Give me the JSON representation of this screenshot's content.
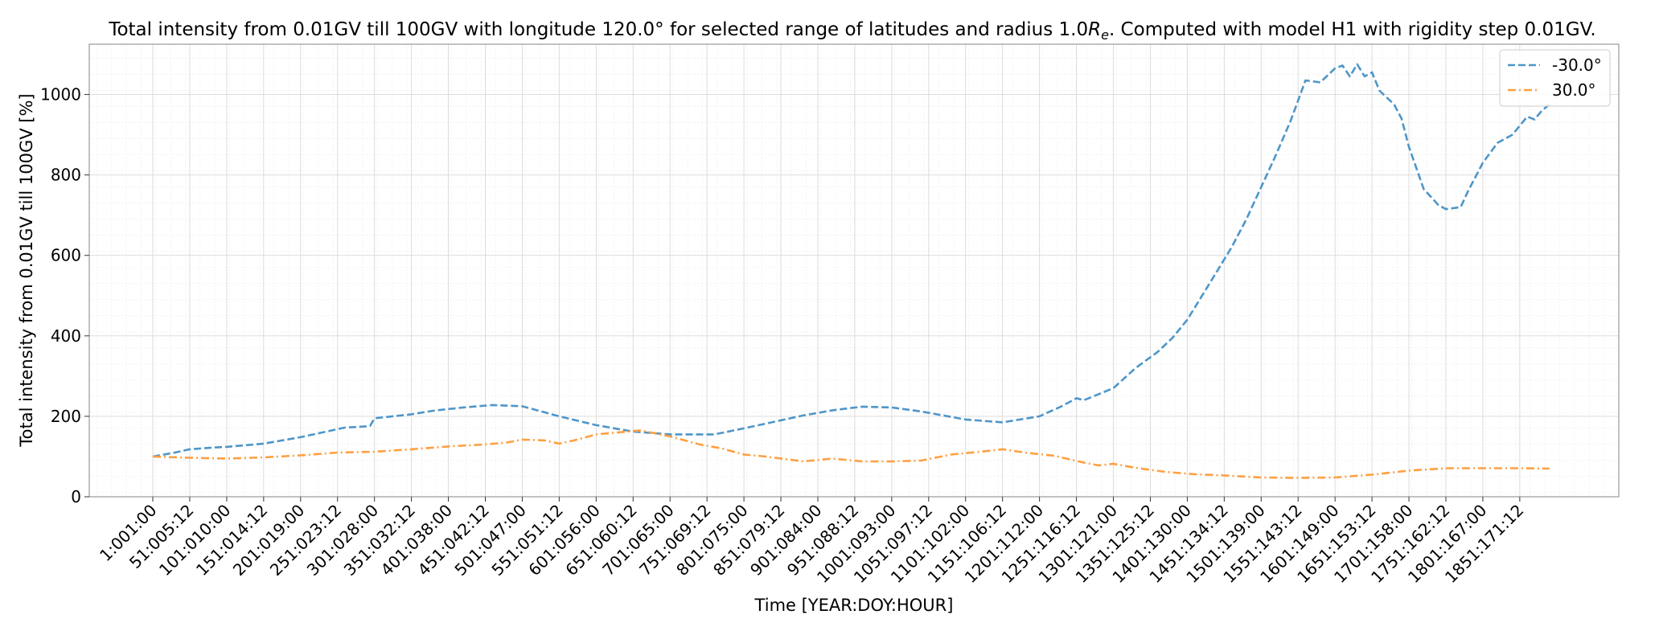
{
  "chart_data": {
    "type": "line",
    "title_main": "Total intensity from 0.01GV till 100GV with longitude 120.0° for selected range of latitudes and radius 1.0",
    "title_var": "R",
    "title_sub": "e",
    "title_tail": ". Computed with model H1 with rigidity step 0.01GV.",
    "xlabel": "Time [YEAR:DOY:HOUR]",
    "ylabel": "Total intensity from 0.01GV till 100GV [%]",
    "xlim": [
      -85,
      1985
    ],
    "ylim": [
      0,
      1125
    ],
    "x_ticks": [
      {
        "x": 1,
        "label": "1:001:00"
      },
      {
        "x": 51,
        "label": "51:005:12"
      },
      {
        "x": 101,
        "label": "101:010:00"
      },
      {
        "x": 151,
        "label": "151:014:12"
      },
      {
        "x": 201,
        "label": "201:019:00"
      },
      {
        "x": 251,
        "label": "251:023:12"
      },
      {
        "x": 301,
        "label": "301:028:00"
      },
      {
        "x": 351,
        "label": "351:032:12"
      },
      {
        "x": 401,
        "label": "401:038:00"
      },
      {
        "x": 451,
        "label": "451:042:12"
      },
      {
        "x": 501,
        "label": "501:047:00"
      },
      {
        "x": 551,
        "label": "551:051:12"
      },
      {
        "x": 601,
        "label": "601:056:00"
      },
      {
        "x": 651,
        "label": "651:060:12"
      },
      {
        "x": 701,
        "label": "701:065:00"
      },
      {
        "x": 751,
        "label": "751:069:12"
      },
      {
        "x": 801,
        "label": "801:075:00"
      },
      {
        "x": 851,
        "label": "851:079:12"
      },
      {
        "x": 901,
        "label": "901:084:00"
      },
      {
        "x": 951,
        "label": "951:088:12"
      },
      {
        "x": 1001,
        "label": "1001:093:00"
      },
      {
        "x": 1051,
        "label": "1051:097:12"
      },
      {
        "x": 1101,
        "label": "1101:102:00"
      },
      {
        "x": 1151,
        "label": "1151:106:12"
      },
      {
        "x": 1201,
        "label": "1201:112:00"
      },
      {
        "x": 1251,
        "label": "1251:116:12"
      },
      {
        "x": 1301,
        "label": "1301:121:00"
      },
      {
        "x": 1351,
        "label": "1351:125:12"
      },
      {
        "x": 1401,
        "label": "1401:130:00"
      },
      {
        "x": 1451,
        "label": "1451:134:12"
      },
      {
        "x": 1501,
        "label": "1501:139:00"
      },
      {
        "x": 1551,
        "label": "1551:143:12"
      },
      {
        "x": 1601,
        "label": "1601:149:00"
      },
      {
        "x": 1651,
        "label": "1651:153:12"
      },
      {
        "x": 1701,
        "label": "1701:158:00"
      },
      {
        "x": 1751,
        "label": "1751:162:12"
      },
      {
        "x": 1801,
        "label": "1801:167:00"
      },
      {
        "x": 1851,
        "label": "1851:171:12"
      }
    ],
    "y_ticks": [
      0,
      200,
      400,
      600,
      800,
      1000
    ],
    "grid": true,
    "legend_position": "top-right",
    "series": [
      {
        "name": "-30.0°",
        "color": "#4e96c8",
        "dash": "dashed",
        "points": [
          [
            1,
            100
          ],
          [
            31,
            110
          ],
          [
            51,
            118
          ],
          [
            81,
            122
          ],
          [
            101,
            124
          ],
          [
            151,
            132
          ],
          [
            201,
            148
          ],
          [
            231,
            160
          ],
          [
            261,
            172
          ],
          [
            291,
            175
          ],
          [
            295,
            176
          ],
          [
            301,
            195
          ],
          [
            351,
            205
          ],
          [
            381,
            214
          ],
          [
            421,
            222
          ],
          [
            461,
            228
          ],
          [
            501,
            225
          ],
          [
            551,
            200
          ],
          [
            601,
            178
          ],
          [
            651,
            162
          ],
          [
            701,
            155
          ],
          [
            761,
            155
          ],
          [
            801,
            170
          ],
          [
            851,
            190
          ],
          [
            881,
            202
          ],
          [
            921,
            215
          ],
          [
            961,
            224
          ],
          [
            1001,
            222
          ],
          [
            1041,
            212
          ],
          [
            1101,
            192
          ],
          [
            1151,
            185
          ],
          [
            1201,
            200
          ],
          [
            1231,
            225
          ],
          [
            1251,
            245
          ],
          [
            1261,
            240
          ],
          [
            1281,
            255
          ],
          [
            1301,
            270
          ],
          [
            1331,
            320
          ],
          [
            1361,
            360
          ],
          [
            1381,
            395
          ],
          [
            1401,
            440
          ],
          [
            1421,
            500
          ],
          [
            1441,
            560
          ],
          [
            1461,
            620
          ],
          [
            1481,
            690
          ],
          [
            1501,
            770
          ],
          [
            1521,
            850
          ],
          [
            1541,
            935
          ],
          [
            1551,
            985
          ],
          [
            1561,
            1035
          ],
          [
            1581,
            1030
          ],
          [
            1601,
            1065
          ],
          [
            1611,
            1072
          ],
          [
            1621,
            1045
          ],
          [
            1631,
            1075
          ],
          [
            1641,
            1045
          ],
          [
            1651,
            1055
          ],
          [
            1661,
            1010
          ],
          [
            1681,
            975
          ],
          [
            1691,
            940
          ],
          [
            1701,
            870
          ],
          [
            1721,
            765
          ],
          [
            1741,
            725
          ],
          [
            1751,
            715
          ],
          [
            1771,
            720
          ],
          [
            1781,
            760
          ],
          [
            1801,
            830
          ],
          [
            1821,
            880
          ],
          [
            1841,
            900
          ],
          [
            1861,
            945
          ],
          [
            1871,
            938
          ],
          [
            1881,
            960
          ],
          [
            1891,
            975
          ]
        ]
      },
      {
        "name": "30.0°",
        "color": "#ff9f40",
        "dash": "dashdot",
        "points": [
          [
            1,
            100
          ],
          [
            51,
            97
          ],
          [
            101,
            95
          ],
          [
            151,
            98
          ],
          [
            201,
            103
          ],
          [
            251,
            110
          ],
          [
            301,
            112
          ],
          [
            351,
            118
          ],
          [
            401,
            125
          ],
          [
            451,
            130
          ],
          [
            481,
            135
          ],
          [
            501,
            142
          ],
          [
            531,
            140
          ],
          [
            551,
            132
          ],
          [
            571,
            140
          ],
          [
            601,
            155
          ],
          [
            631,
            160
          ],
          [
            661,
            165
          ],
          [
            701,
            150
          ],
          [
            741,
            130
          ],
          [
            771,
            120
          ],
          [
            801,
            105
          ],
          [
            831,
            100
          ],
          [
            881,
            88
          ],
          [
            921,
            95
          ],
          [
            961,
            88
          ],
          [
            1001,
            88
          ],
          [
            1041,
            90
          ],
          [
            1081,
            105
          ],
          [
            1121,
            112
          ],
          [
            1151,
            118
          ],
          [
            1181,
            110
          ],
          [
            1221,
            102
          ],
          [
            1261,
            85
          ],
          [
            1281,
            78
          ],
          [
            1301,
            82
          ],
          [
            1331,
            72
          ],
          [
            1371,
            62
          ],
          [
            1411,
            56
          ],
          [
            1451,
            53
          ],
          [
            1501,
            48
          ],
          [
            1551,
            47
          ],
          [
            1601,
            48
          ],
          [
            1651,
            55
          ],
          [
            1701,
            65
          ],
          [
            1751,
            71
          ],
          [
            1801,
            71
          ],
          [
            1851,
            71
          ],
          [
            1891,
            70
          ]
        ]
      }
    ]
  }
}
